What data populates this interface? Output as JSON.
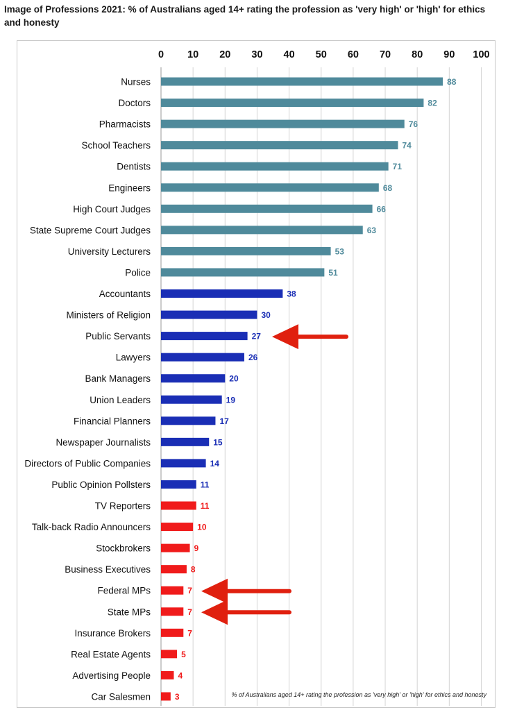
{
  "title": "Image of Professions 2021: % of Australians aged 14+ rating the profession as 'very high' or 'high' for ethics and honesty",
  "footnote": "% of Australians aged 14+ rating the profession as 'very high' or 'high' for ethics and honesty",
  "colors": {
    "teal": "#4f8a9b",
    "blue": "#1a2eb5",
    "red": "#f01b1b",
    "arrow": "#e0200f",
    "grid": "#d4d4d4"
  },
  "chart_data": {
    "type": "bar",
    "orientation": "horizontal",
    "title": "Image of Professions 2021: % of Australians aged 14+ rating the profession as 'very high' or 'high' for ethics and honesty",
    "xlim": [
      0,
      100
    ],
    "xticks": [
      0,
      10,
      20,
      30,
      40,
      50,
      60,
      70,
      80,
      90,
      100
    ],
    "axis_position": "top",
    "grid": true,
    "categories": [
      "Nurses",
      "Doctors",
      "Pharmacists",
      "School Teachers",
      "Dentists",
      "Engineers",
      "High Court Judges",
      "State Supreme Court Judges",
      "University Lecturers",
      "Police",
      "Accountants",
      "Ministers of Religion",
      "Public Servants",
      "Lawyers",
      "Bank Managers",
      "Union Leaders",
      "Financial Planners",
      "Newspaper Journalists",
      "Directors of Public Companies",
      "Public Opinion Pollsters",
      "TV Reporters",
      "Talk-back Radio Announcers",
      "Stockbrokers",
      "Business Executives",
      "Federal MPs",
      "State MPs",
      "Insurance Brokers",
      "Real Estate Agents",
      "Advertising People",
      "Car Salesmen"
    ],
    "values": [
      88,
      82,
      76,
      74,
      71,
      68,
      66,
      63,
      53,
      51,
      38,
      30,
      27,
      26,
      20,
      19,
      17,
      15,
      14,
      11,
      11,
      10,
      9,
      8,
      7,
      7,
      7,
      5,
      4,
      3
    ],
    "bar_groups": [
      "teal",
      "teal",
      "teal",
      "teal",
      "teal",
      "teal",
      "teal",
      "teal",
      "teal",
      "teal",
      "blue",
      "blue",
      "blue",
      "blue",
      "blue",
      "blue",
      "blue",
      "blue",
      "blue",
      "blue",
      "red",
      "red",
      "red",
      "red",
      "red",
      "red",
      "red",
      "red",
      "red",
      "red"
    ],
    "annotations": [
      {
        "type": "arrow",
        "points_to": "Public Servants"
      },
      {
        "type": "arrow",
        "points_to": "Federal MPs"
      },
      {
        "type": "arrow",
        "points_to": "State MPs"
      }
    ]
  }
}
